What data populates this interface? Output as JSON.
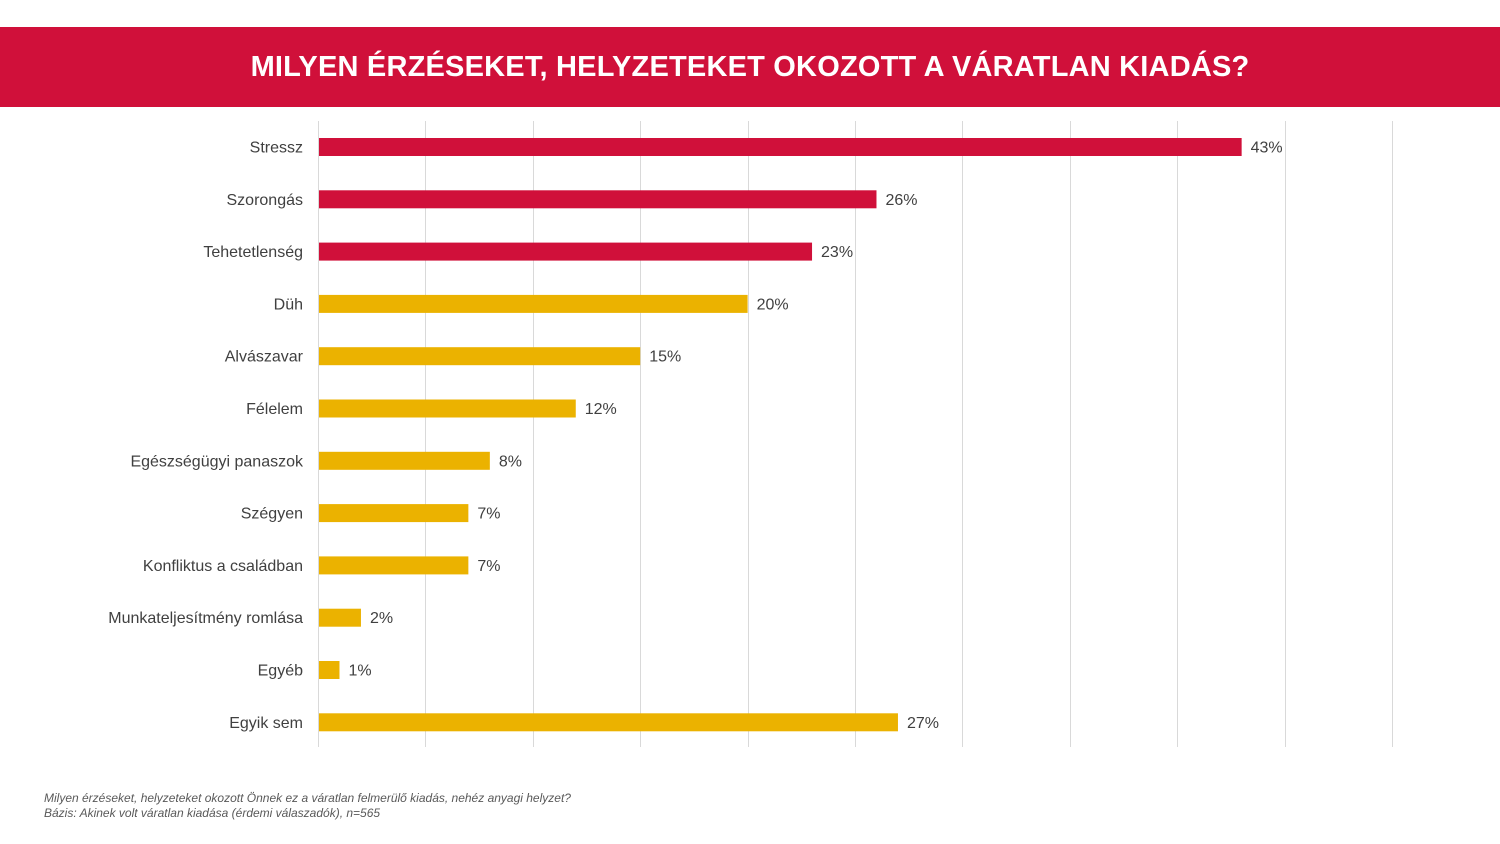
{
  "title": "MILYEN ÉRZÉSEKET, HELYZETEKET OKOZOTT A VÁRATLAN KIADÁS?",
  "footnote": {
    "question": "Milyen érzéseket, helyzeteket okozott Önnek ez a váratlan felmerülő kiadás, nehéz anyagi helyzet?",
    "base": "Bázis: Akinek volt váratlan kiadása (érdemi válaszadók), n=565"
  },
  "colors": {
    "header": "#d0103a",
    "highlight": "#d0103a",
    "default": "#ebb200",
    "grid": "#d9d9d9"
  },
  "chart_data": {
    "type": "bar",
    "orientation": "horizontal",
    "title": "MILYEN ÉRZÉSEKET, HELYZETEKET OKOZOTT A VÁRATLAN KIADÁS?",
    "xlabel": "",
    "ylabel": "",
    "xlim": [
      0,
      50
    ],
    "grid_step": 5,
    "grid": true,
    "unit": "%",
    "categories": [
      "Stressz",
      "Szorongás",
      "Tehetetlenség",
      "Düh",
      "Alvászavar",
      "Félelem",
      "Egészségügyi panaszok",
      "Szégyen",
      "Konfliktus a családban",
      "Munkateljesítmény romlása",
      "Egyéb",
      "Egyik sem"
    ],
    "values": [
      43,
      26,
      23,
      20,
      15,
      12,
      8,
      7,
      7,
      2,
      1,
      27
    ],
    "labels": [
      "43%",
      "26%",
      "23%",
      "20%",
      "15%",
      "12%",
      "8%",
      "7%",
      "7%",
      "2%",
      "1%",
      "27%"
    ],
    "highlighted": [
      true,
      true,
      true,
      false,
      false,
      false,
      false,
      false,
      false,
      false,
      false,
      false
    ]
  }
}
